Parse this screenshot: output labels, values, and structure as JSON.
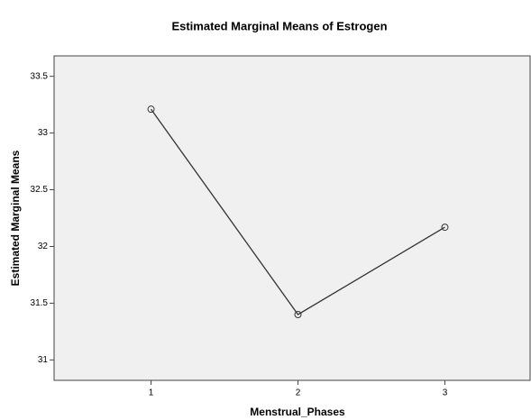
{
  "chart_data": {
    "type": "line",
    "title": "Estimated Marginal Means of Estrogen",
    "x_label": "Menstrual_Phases",
    "y_label": "Estimated Marginal Means",
    "x": [
      1,
      2,
      3
    ],
    "series": [
      {
        "color": "#333333",
        "values": [
          33.21,
          31.4,
          32.17
        ]
      }
    ],
    "xlim": [
      0.34,
      3.58
    ],
    "xticks": [
      1,
      2,
      3
    ],
    "ylim": [
      30.82,
      33.68
    ],
    "yticks": [
      31,
      31.5,
      32,
      32.5,
      33,
      33.5
    ]
  }
}
